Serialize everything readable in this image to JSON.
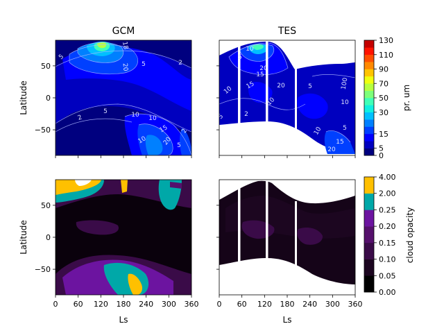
{
  "chart_data": [
    {
      "type": "heatmap",
      "panel": "top-left",
      "title": "GCM",
      "ylabel": "Latitude",
      "xlim": [
        0,
        360
      ],
      "ylim": [
        -90,
        90
      ],
      "yticks": [
        50,
        0,
        -50
      ],
      "ytick_labels": [
        "50",
        "0",
        "−50"
      ],
      "contour_labels": [
        "5",
        "18",
        "20",
        "5",
        "2",
        "10",
        "10",
        "2",
        "5",
        "10",
        "15",
        "20",
        "5",
        "2"
      ],
      "colorbar_ref": "water"
    },
    {
      "type": "heatmap",
      "panel": "top-right",
      "title": "TES",
      "xlim": [
        0,
        360
      ],
      "ylim": [
        -90,
        90
      ],
      "contour_labels": [
        "5",
        "10",
        "15",
        "20",
        "2",
        "10",
        "15",
        "5",
        "10",
        "20",
        "5",
        "10",
        "5",
        "10",
        "15",
        "20",
        "100"
      ],
      "colorbar_ref": "water"
    },
    {
      "type": "heatmap",
      "panel": "bottom-left",
      "ylabel": "Latitude",
      "xlabel": "Ls",
      "xlim": [
        0,
        360
      ],
      "ylim": [
        -90,
        90
      ],
      "xticks": [
        0,
        60,
        120,
        180,
        240,
        300,
        360
      ],
      "xtick_labels": [
        "0",
        "60",
        "120",
        "180",
        "240",
        "300",
        "360"
      ],
      "yticks": [
        50,
        0,
        -50
      ],
      "ytick_labels": [
        "50",
        "0",
        "−50"
      ],
      "colorbar_ref": "cloud"
    },
    {
      "type": "heatmap",
      "panel": "bottom-right",
      "xlabel": "Ls",
      "xlim": [
        0,
        360
      ],
      "ylim": [
        -90,
        90
      ],
      "xticks": [
        0,
        60,
        120,
        180,
        240,
        300,
        360
      ],
      "xtick_labels": [
        "0",
        "60",
        "120",
        "180",
        "240",
        "300",
        "360"
      ],
      "colorbar_ref": "cloud"
    }
  ],
  "colorbars": {
    "water": {
      "label": "pr. um",
      "levels": [
        "0",
        "5",
        "10",
        "15",
        "20",
        "25",
        "30",
        "40",
        "50",
        "60",
        "70",
        "80",
        "90",
        "100",
        "110",
        "120",
        "130"
      ],
      "tick_labels": [
        "0",
        "5",
        "15",
        "30",
        "50",
        "70",
        "90",
        "110",
        "130"
      ],
      "colors": [
        "#00007f",
        "#0000bf",
        "#0000ff",
        "#0040ff",
        "#0080ff",
        "#00c0ff",
        "#10f0e0",
        "#40ffb7",
        "#7dff7a",
        "#b7ff40",
        "#f0ff0f",
        "#ffc400",
        "#ff8900",
        "#ff4e00",
        "#ff1300",
        "#c40000"
      ]
    },
    "cloud": {
      "label": "cloud opacity",
      "levels": [
        "0.00",
        "0.05",
        "0.10",
        "0.15",
        "0.20",
        "0.25",
        "2.00",
        "4.00"
      ],
      "tick_labels": [
        "0.00",
        "0.05",
        "0.10",
        "0.15",
        "0.20",
        "0.25",
        "2.00",
        "4.00"
      ],
      "colors": [
        "#000000",
        "#1c0620",
        "#3a0b48",
        "#55106c",
        "#6c14a0",
        "#00a8a8",
        "#ffc000"
      ]
    }
  },
  "colors": {
    "water_background": "#00007f",
    "cloud_background": "#050005"
  }
}
